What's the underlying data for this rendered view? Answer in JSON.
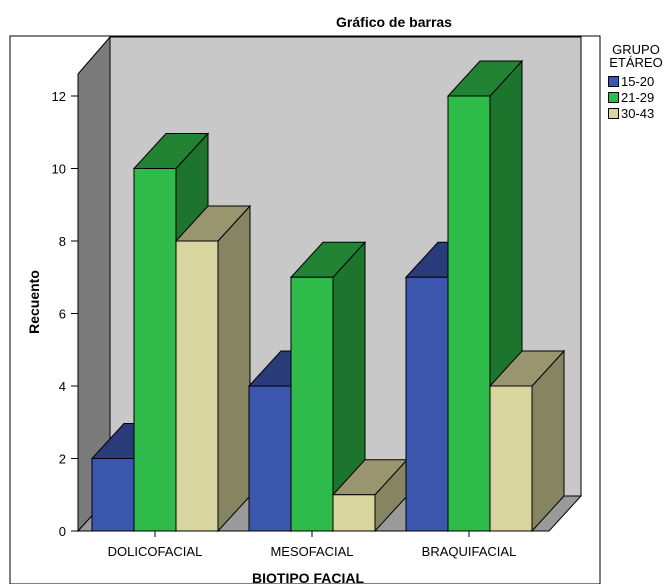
{
  "chart_data": {
    "type": "bar",
    "title": "Gráfico de barras",
    "xlabel": "BIOTIPO FACIAL",
    "ylabel": "Recuento",
    "categories": [
      "DOLICOFACIAL",
      "MESOFACIAL",
      "BRAQUIFACIAL"
    ],
    "series": [
      {
        "name": "15-20",
        "values": [
          2,
          4,
          7
        ],
        "color": "#3b56ad"
      },
      {
        "name": "21-29",
        "values": [
          10,
          7,
          12
        ],
        "color": "#2fbb49"
      },
      {
        "name": "30-43",
        "values": [
          8,
          1,
          4
        ],
        "color": "#d9d59e"
      }
    ],
    "legend_title": [
      "GRUPO",
      "ETÁREO"
    ],
    "yticks": [
      0,
      2,
      4,
      6,
      8,
      10,
      12
    ],
    "ylim": [
      0,
      12
    ],
    "grid": false,
    "legend_position": "right",
    "projection": "3d"
  }
}
